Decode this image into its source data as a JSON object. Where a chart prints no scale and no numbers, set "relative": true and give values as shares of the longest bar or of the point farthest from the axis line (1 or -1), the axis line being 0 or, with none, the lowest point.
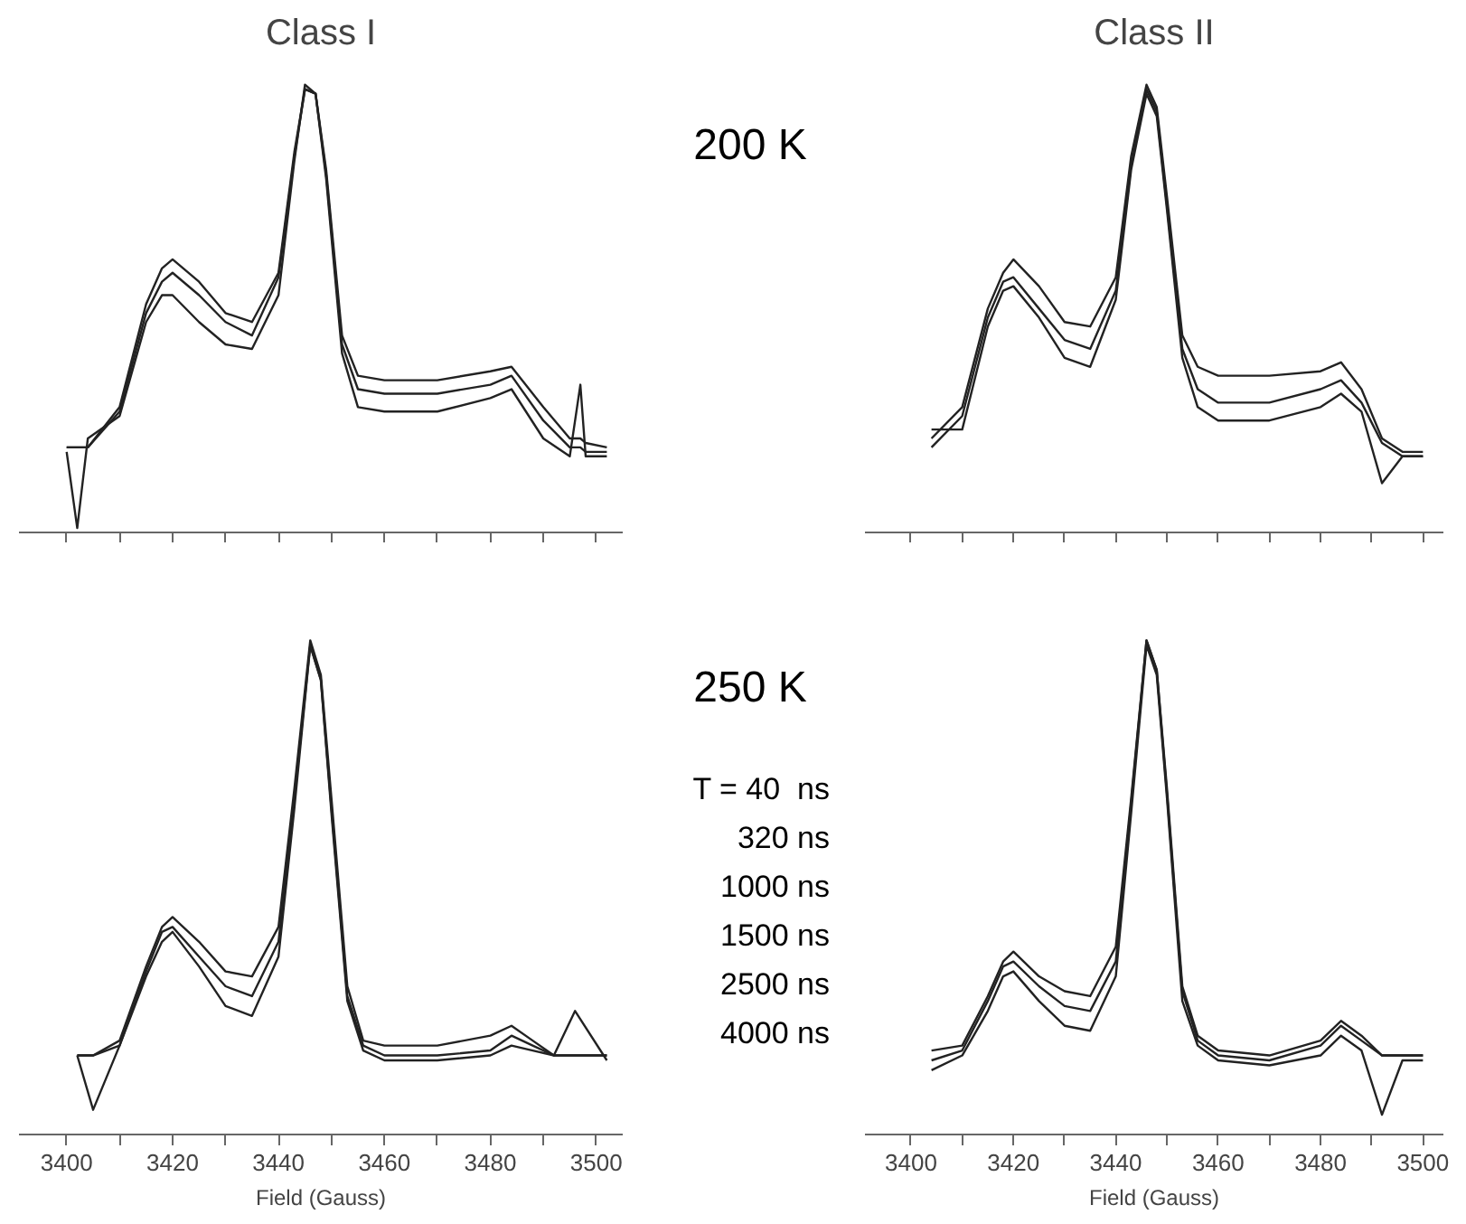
{
  "chart_data": [
    {
      "type": "line",
      "title": "Class I",
      "relative": true,
      "tick_labels": false,
      "xlim": [
        3391,
        3505
      ],
      "xticks": [
        {
          "value": 3400,
          "label": null
        },
        {
          "value": 3410,
          "label": null
        },
        {
          "value": 3420,
          "label": null
        },
        {
          "value": 3430,
          "label": null
        },
        {
          "value": 3440,
          "label": null
        },
        {
          "value": 3450,
          "label": null
        },
        {
          "value": 3460,
          "label": null
        },
        {
          "value": 3470,
          "label": null
        },
        {
          "value": 3480,
          "label": null
        },
        {
          "value": 3490,
          "label": null
        },
        {
          "value": 3500,
          "label": null
        }
      ],
      "x": [
        3400,
        3402,
        3404,
        3410,
        3415,
        3418,
        3420,
        3425,
        3430,
        3435,
        3440,
        3443,
        3445,
        3447,
        3449,
        3452,
        3455,
        3460,
        3470,
        3480,
        3484,
        3490,
        3495,
        3497,
        3498,
        3502
      ],
      "series": [
        {
          "color": "#222222",
          "values": [
            0.19,
            0.19,
            0.19,
            0.28,
            0.51,
            0.59,
            0.61,
            0.56,
            0.49,
            0.47,
            0.58,
            0.85,
            0.99,
            0.98,
            0.81,
            0.44,
            0.35,
            0.34,
            0.34,
            0.36,
            0.37,
            0.28,
            0.21,
            0.21,
            0.2,
            0.19
          ]
        },
        {
          "color": "#222222",
          "values": [
            0.19,
            0.19,
            0.19,
            0.27,
            0.49,
            0.56,
            0.58,
            0.53,
            0.47,
            0.44,
            0.57,
            0.84,
            0.99,
            0.98,
            0.8,
            0.42,
            0.32,
            0.31,
            0.31,
            0.33,
            0.35,
            0.25,
            0.19,
            0.19,
            0.18,
            0.18
          ]
        },
        {
          "color": "#222222",
          "values": [
            0.18,
            0.01,
            0.21,
            0.26,
            0.47,
            0.53,
            0.53,
            0.47,
            0.42,
            0.41,
            0.53,
            0.83,
            1.0,
            0.98,
            0.79,
            0.4,
            0.28,
            0.27,
            0.27,
            0.3,
            0.32,
            0.21,
            0.17,
            0.33,
            0.17,
            0.17
          ]
        }
      ]
    },
    {
      "type": "line",
      "title": "Class II",
      "relative": true,
      "tick_labels": false,
      "xlim": [
        3391,
        3504
      ],
      "annotations": [
        "200 K"
      ],
      "xticks": [
        {
          "value": 3400,
          "label": null
        },
        {
          "value": 3410,
          "label": null
        },
        {
          "value": 3420,
          "label": null
        },
        {
          "value": 3430,
          "label": null
        },
        {
          "value": 3440,
          "label": null
        },
        {
          "value": 3450,
          "label": null
        },
        {
          "value": 3460,
          "label": null
        },
        {
          "value": 3470,
          "label": null
        },
        {
          "value": 3480,
          "label": null
        },
        {
          "value": 3490,
          "label": null
        },
        {
          "value": 3500,
          "label": null
        }
      ],
      "x": [
        3404,
        3410,
        3415,
        3418,
        3420,
        3425,
        3430,
        3435,
        3440,
        3443,
        3446,
        3448,
        3450,
        3453,
        3456,
        3460,
        3470,
        3480,
        3484,
        3488,
        3492,
        3496,
        3500
      ],
      "series": [
        {
          "color": "#222222",
          "values": [
            0.21,
            0.28,
            0.5,
            0.58,
            0.61,
            0.55,
            0.47,
            0.46,
            0.57,
            0.84,
            1.0,
            0.95,
            0.75,
            0.44,
            0.37,
            0.35,
            0.35,
            0.36,
            0.38,
            0.32,
            0.21,
            0.18,
            0.18
          ]
        },
        {
          "color": "#222222",
          "values": [
            0.19,
            0.26,
            0.48,
            0.56,
            0.57,
            0.5,
            0.43,
            0.41,
            0.54,
            0.82,
            0.99,
            0.94,
            0.73,
            0.41,
            0.32,
            0.29,
            0.29,
            0.32,
            0.34,
            0.29,
            0.2,
            0.17,
            0.17
          ]
        },
        {
          "color": "#222222",
          "values": [
            0.23,
            0.23,
            0.46,
            0.54,
            0.55,
            0.48,
            0.39,
            0.37,
            0.52,
            0.81,
            0.98,
            0.93,
            0.72,
            0.39,
            0.28,
            0.25,
            0.25,
            0.28,
            0.31,
            0.27,
            0.11,
            0.17,
            0.17
          ]
        }
      ]
    },
    {
      "type": "line",
      "xlabel": "Field (Gauss)",
      "relative": true,
      "tick_labels": "x",
      "xlim": [
        3391,
        3505
      ],
      "xticks": [
        3400,
        {
          "value": 3410,
          "label": null
        },
        3420,
        {
          "value": 3430,
          "label": null
        },
        3440,
        {
          "value": 3450,
          "label": null
        },
        3460,
        {
          "value": 3470,
          "label": null
        },
        3480,
        {
          "value": 3490,
          "label": null
        },
        3500
      ],
      "x": [
        3402,
        3405,
        3410,
        3415,
        3418,
        3420,
        3425,
        3430,
        3435,
        3440,
        3443,
        3446,
        3448,
        3450,
        3453,
        3456,
        3460,
        3470,
        3480,
        3484,
        3488,
        3492,
        3496,
        3502
      ],
      "series": [
        {
          "color": "#222222",
          "values": [
            0.16,
            0.16,
            0.19,
            0.34,
            0.42,
            0.44,
            0.39,
            0.33,
            0.32,
            0.42,
            0.7,
            1.0,
            0.93,
            0.68,
            0.3,
            0.19,
            0.18,
            0.18,
            0.2,
            0.22,
            0.19,
            0.16,
            0.16,
            0.16
          ]
        },
        {
          "color": "#222222",
          "values": [
            0.16,
            0.16,
            0.18,
            0.33,
            0.41,
            0.42,
            0.36,
            0.3,
            0.28,
            0.39,
            0.68,
            0.99,
            0.92,
            0.66,
            0.28,
            0.18,
            0.16,
            0.16,
            0.17,
            0.2,
            0.18,
            0.16,
            0.16,
            0.16
          ]
        },
        {
          "color": "#222222",
          "values": [
            0.16,
            0.05,
            0.18,
            0.32,
            0.39,
            0.41,
            0.34,
            0.26,
            0.24,
            0.36,
            0.66,
            0.99,
            0.92,
            0.65,
            0.27,
            0.17,
            0.15,
            0.15,
            0.16,
            0.18,
            0.17,
            0.16,
            0.25,
            0.15
          ]
        }
      ]
    },
    {
      "type": "line",
      "xlabel": "Field (Gauss)",
      "relative": true,
      "tick_labels": "x",
      "xlim": [
        3391,
        3504
      ],
      "annotations": [
        "250 K",
        "T = 40  ns",
        "320 ns",
        "1000 ns",
        "1500 ns",
        "2500 ns",
        "4000 ns"
      ],
      "xticks": [
        3400,
        {
          "value": 3410,
          "label": null
        },
        3420,
        {
          "value": 3430,
          "label": null
        },
        3440,
        {
          "value": 3450,
          "label": null
        },
        3460,
        {
          "value": 3470,
          "label": null
        },
        3480,
        {
          "value": 3490,
          "label": null
        },
        3500
      ],
      "x": [
        3404,
        3410,
        3415,
        3418,
        3420,
        3425,
        3430,
        3435,
        3440,
        3443,
        3446,
        3448,
        3450,
        3453,
        3456,
        3460,
        3470,
        3480,
        3484,
        3488,
        3492,
        3496,
        3500
      ],
      "series": [
        {
          "color": "#222222",
          "values": [
            0.17,
            0.18,
            0.28,
            0.35,
            0.37,
            0.32,
            0.29,
            0.28,
            0.38,
            0.68,
            1.0,
            0.94,
            0.7,
            0.3,
            0.2,
            0.17,
            0.16,
            0.19,
            0.23,
            0.2,
            0.16,
            0.16,
            0.16
          ]
        },
        {
          "color": "#222222",
          "values": [
            0.15,
            0.17,
            0.27,
            0.34,
            0.35,
            0.3,
            0.26,
            0.25,
            0.35,
            0.67,
            1.0,
            0.94,
            0.69,
            0.29,
            0.19,
            0.16,
            0.15,
            0.18,
            0.22,
            0.19,
            0.16,
            0.16,
            0.16
          ]
        },
        {
          "color": "#222222",
          "values": [
            0.13,
            0.16,
            0.25,
            0.32,
            0.33,
            0.27,
            0.22,
            0.21,
            0.32,
            0.65,
            0.99,
            0.93,
            0.68,
            0.27,
            0.18,
            0.15,
            0.14,
            0.16,
            0.2,
            0.17,
            0.04,
            0.15,
            0.15
          ]
        }
      ]
    }
  ]
}
